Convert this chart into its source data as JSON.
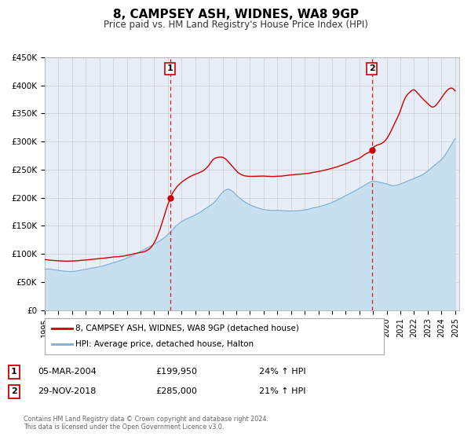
{
  "title": "8, CAMPSEY ASH, WIDNES, WA8 9GP",
  "subtitle": "Price paid vs. HM Land Registry's House Price Index (HPI)",
  "red_label": "8, CAMPSEY ASH, WIDNES, WA8 9GP (detached house)",
  "blue_label": "HPI: Average price, detached house, Halton",
  "marker1_date_x": 2004.17,
  "marker1_value": 199950,
  "marker2_date_x": 2018.91,
  "marker2_value": 285000,
  "table1": [
    "1",
    "05-MAR-2004",
    "£199,950",
    "24% ↑ HPI"
  ],
  "table2": [
    "2",
    "29-NOV-2018",
    "£285,000",
    "21% ↑ HPI"
  ],
  "footer1": "Contains HM Land Registry data © Crown copyright and database right 2024.",
  "footer2": "This data is licensed under the Open Government Licence v3.0.",
  "ylim": [
    0,
    450000
  ],
  "xlim_start": 1995.0,
  "xlim_end": 2025.3,
  "yticks": [
    0,
    50000,
    100000,
    150000,
    200000,
    250000,
    300000,
    350000,
    400000,
    450000
  ],
  "ytick_labels": [
    "£0",
    "£50K",
    "£100K",
    "£150K",
    "£200K",
    "£250K",
    "£300K",
    "£350K",
    "£400K",
    "£450K"
  ],
  "red_color": "#cc0000",
  "blue_color": "#7aadd4",
  "blue_fill": "#c8dff0",
  "grid_color": "#cccccc",
  "bg_color": "#e8eef8",
  "plot_bg": "#ffffff",
  "title_fontsize": 11,
  "subtitle_fontsize": 8.5,
  "tick_fontsize": 7.5,
  "legend_fontsize": 7.5,
  "table_fontsize": 8,
  "footer_fontsize": 5.8,
  "blue_anchors_x": [
    1995,
    1996,
    1997,
    1998,
    1999,
    2000,
    2001,
    2002,
    2003,
    2004,
    2004.5,
    2005,
    2006,
    2007,
    2007.5,
    2008,
    2008.5,
    2009,
    2009.5,
    2010,
    2010.5,
    2011,
    2012,
    2013,
    2014,
    2015,
    2016,
    2017,
    2018,
    2018.5,
    2019,
    2019.5,
    2020,
    2020.5,
    2021,
    2021.5,
    2022,
    2022.5,
    2023,
    2023.5,
    2024,
    2024.5,
    2025
  ],
  "blue_anchors_y": [
    73000,
    71000,
    69000,
    73000,
    78000,
    85000,
    93000,
    105000,
    118000,
    135000,
    148000,
    158000,
    170000,
    185000,
    195000,
    210000,
    215000,
    205000,
    195000,
    188000,
    183000,
    180000,
    178000,
    178000,
    180000,
    185000,
    193000,
    205000,
    218000,
    225000,
    230000,
    228000,
    225000,
    222000,
    225000,
    230000,
    235000,
    240000,
    248000,
    258000,
    268000,
    285000,
    305000
  ],
  "red_anchors_x": [
    1995,
    1996,
    1997,
    1998,
    1999,
    2000,
    2001,
    2002,
    2003,
    2003.5,
    2004.17,
    2004.5,
    2005,
    2006,
    2007,
    2007.3,
    2007.7,
    2008,
    2008.5,
    2009,
    2009.5,
    2010,
    2010.5,
    2011,
    2012,
    2013,
    2014,
    2015,
    2016,
    2017,
    2017.5,
    2018,
    2018.5,
    2018.91,
    2019,
    2019.5,
    2020,
    2020.5,
    2021,
    2021.3,
    2021.7,
    2022,
    2022.3,
    2022.7,
    2023,
    2023.3,
    2023.7,
    2024,
    2024.3,
    2024.7,
    2025
  ],
  "red_anchors_y": [
    90000,
    88000,
    88000,
    90000,
    92000,
    95000,
    98000,
    103000,
    120000,
    150000,
    199950,
    215000,
    228000,
    242000,
    258000,
    268000,
    272000,
    272000,
    262000,
    248000,
    240000,
    238000,
    238000,
    238000,
    238000,
    240000,
    242000,
    246000,
    252000,
    260000,
    265000,
    270000,
    278000,
    285000,
    288000,
    295000,
    305000,
    328000,
    355000,
    375000,
    388000,
    392000,
    385000,
    375000,
    368000,
    362000,
    368000,
    378000,
    388000,
    395000,
    390000
  ]
}
